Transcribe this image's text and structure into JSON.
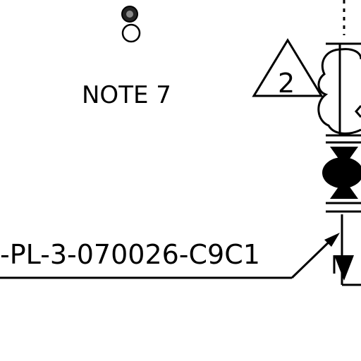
{
  "drawing": {
    "note_label": "NOTE 7",
    "revision_marker": "2",
    "line_number_label": "-PL-3-070026-C9C1"
  },
  "colors": {
    "line": "#000000",
    "background": "#ffffff",
    "filled_symbol": "#000000"
  }
}
